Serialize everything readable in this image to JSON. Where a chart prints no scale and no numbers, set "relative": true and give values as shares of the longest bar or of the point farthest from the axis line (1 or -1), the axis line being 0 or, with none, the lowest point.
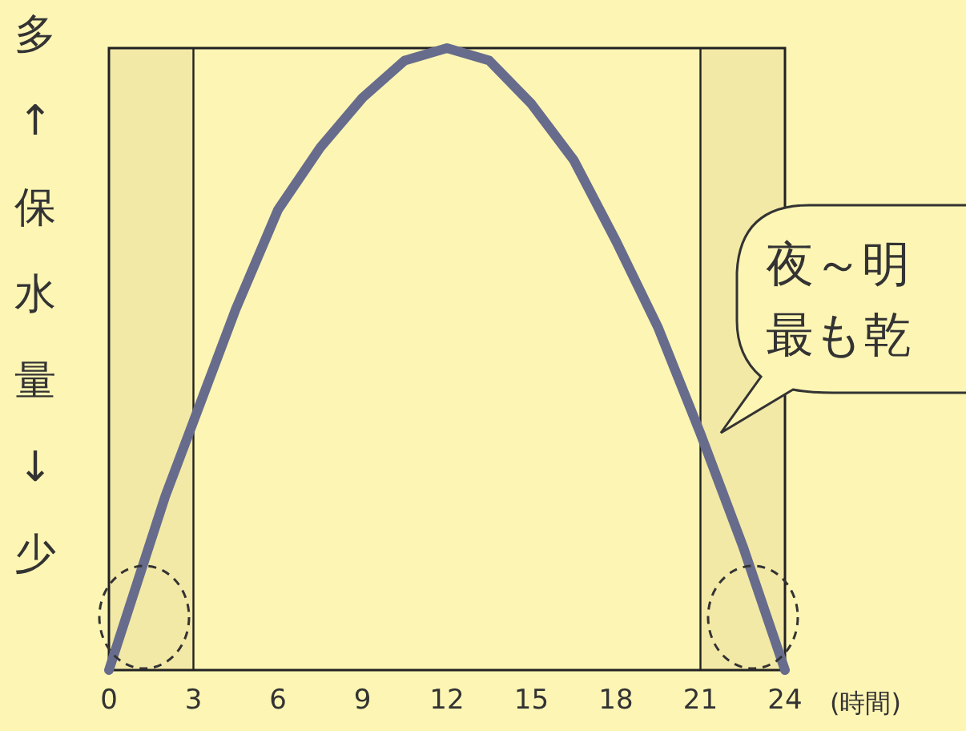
{
  "chart_data": {
    "type": "line",
    "relative": true,
    "tick_labels": "x",
    "ref_lines": [
      {
        "axis": "x",
        "value": 3,
        "color": "#222222"
      },
      {
        "axis": "x",
        "value": 21,
        "color": "#222222"
      }
    ],
    "xlabel": "(時間)",
    "ylabel": "多↑保水量↓少",
    "xlim": [
      0,
      24
    ],
    "xticks": [
      0,
      3,
      6,
      9,
      12,
      15,
      18,
      21,
      24
    ],
    "series": [
      {
        "color": "#676c8c",
        "x": [
          0,
          1,
          2,
          3,
          4.5,
          6,
          7.5,
          9,
          10.5,
          12,
          13.5,
          15,
          16.5,
          18,
          19.5,
          21,
          22.5,
          24
        ],
        "values": [
          0,
          0.14,
          0.28,
          0.4,
          0.58,
          0.74,
          0.84,
          0.92,
          0.98,
          1,
          0.98,
          0.91,
          0.82,
          0.69,
          0.55,
          0.38,
          0.2,
          0
        ]
      }
    ],
    "bands": [
      {
        "axis": "x",
        "from": 0,
        "to": 3,
        "color": "#f3e9a6"
      },
      {
        "axis": "x",
        "from": 21,
        "to": 24,
        "color": "#f3e9a6"
      }
    ],
    "annotations": [
      "夜～明",
      "最も乾"
    ]
  }
}
